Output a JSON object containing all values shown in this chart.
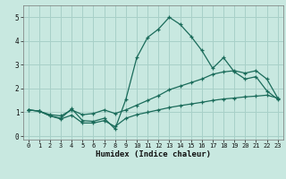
{
  "xlabel": "Humidex (Indice chaleur)",
  "background_color": "#c8e8e0",
  "grid_color": "#a8d0c8",
  "line_color": "#1a6b5a",
  "x": [
    0,
    1,
    2,
    3,
    4,
    5,
    6,
    7,
    8,
    9,
    10,
    11,
    12,
    13,
    14,
    15,
    16,
    17,
    18,
    19,
    20,
    21,
    22,
    23
  ],
  "line1": [
    1.1,
    1.05,
    0.85,
    0.75,
    1.15,
    0.65,
    0.62,
    0.75,
    0.3,
    1.55,
    3.3,
    4.15,
    4.5,
    5.0,
    4.7,
    4.2,
    3.6,
    2.85,
    3.3,
    2.7,
    2.4,
    2.5,
    1.9,
    1.55
  ],
  "line2": [
    1.1,
    1.05,
    0.9,
    0.85,
    1.1,
    0.9,
    0.95,
    1.1,
    0.95,
    1.1,
    1.3,
    1.5,
    1.7,
    1.95,
    2.1,
    2.25,
    2.4,
    2.6,
    2.7,
    2.75,
    2.65,
    2.75,
    2.4,
    1.6
  ],
  "line3": [
    1.1,
    1.05,
    0.85,
    0.72,
    0.88,
    0.55,
    0.55,
    0.65,
    0.4,
    0.75,
    0.9,
    1.0,
    1.1,
    1.2,
    1.28,
    1.35,
    1.42,
    1.5,
    1.56,
    1.6,
    1.65,
    1.68,
    1.72,
    1.6
  ],
  "ylim": [
    -0.15,
    5.5
  ],
  "xlim": [
    -0.5,
    23.5
  ],
  "yticks": [
    0,
    1,
    2,
    3,
    4,
    5
  ],
  "xticks": [
    0,
    1,
    2,
    3,
    4,
    5,
    6,
    7,
    8,
    9,
    10,
    11,
    12,
    13,
    14,
    15,
    16,
    17,
    18,
    19,
    20,
    21,
    22,
    23
  ]
}
